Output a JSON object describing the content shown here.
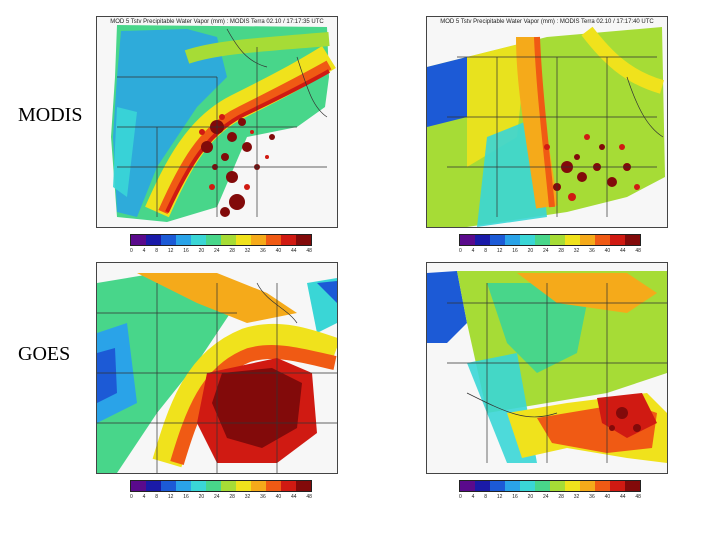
{
  "labels": {
    "row1": "MODIS",
    "row2": "GOES"
  },
  "panels": {
    "modis_left_title": "MOD 5 Tstv Precipitable Water Vapor (mm) : MODIS Terra 02.10 / 17:17:35 UTC",
    "modis_right_title": "MOD 5 Tstv Precipitable Water Vapor (mm) : MODIS Terra 02.10 / 17:17:40 UTC",
    "goes_left_title": "",
    "goes_right_title": ""
  },
  "colorbar": {
    "colors": [
      "#5a0a8c",
      "#1a1aa8",
      "#1c5ad6",
      "#2aa3e8",
      "#3ad6d6",
      "#48d68a",
      "#a6dc36",
      "#f0e21c",
      "#f5aa1a",
      "#f05a14",
      "#d01a12",
      "#820a0a"
    ],
    "modis_ticks": [
      "0",
      "4",
      "8",
      "12",
      "16",
      "20",
      "24",
      "28",
      "32",
      "36",
      "40",
      "44",
      "48"
    ],
    "goes_ticks": [
      "0",
      "4",
      "8",
      "12",
      "16",
      "20",
      "24",
      "28",
      "32",
      "36",
      "40",
      "44",
      "48"
    ]
  }
}
